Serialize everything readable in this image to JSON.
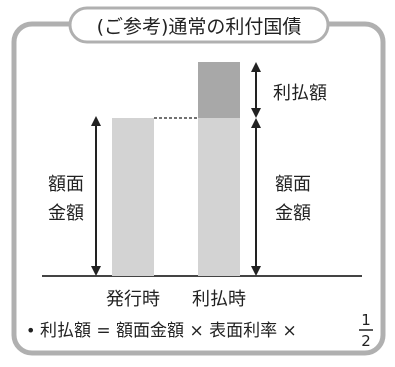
{
  "title": "(ご参考)通常の利付国債",
  "left_label_line1": "額面",
  "left_label_line2": "金額",
  "right_label_top": "利払額",
  "right_label_line1": "額面",
  "right_label_line2": "金額",
  "bar_label_issue": "発行時",
  "bar_label_payment": "利払時",
  "formula": {
    "bullet": "•",
    "text": "利払額 = 額面金額 × 表面利率 ×",
    "numerator": "1",
    "denominator": "2"
  },
  "colors": {
    "frame": "#b0b0b0",
    "bar_light": "#d3d3d3",
    "bar_dark": "#a8a8a8"
  }
}
